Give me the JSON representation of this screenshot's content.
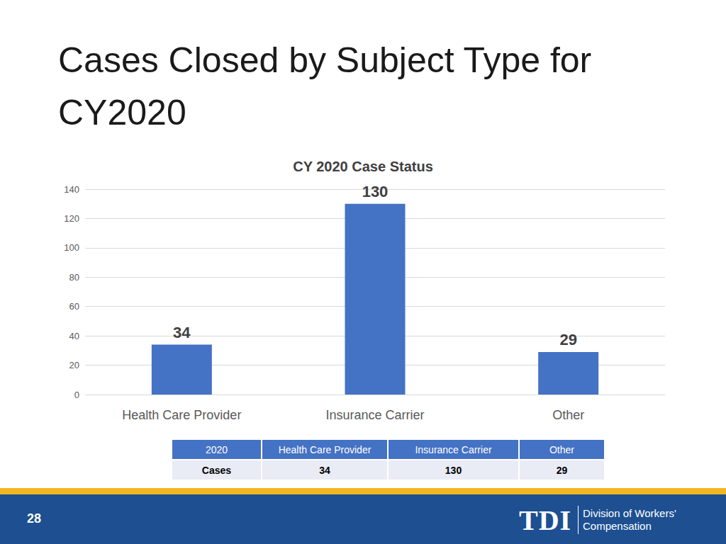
{
  "slide": {
    "title": "Cases Closed by Subject Type for CY2020",
    "page_number": 28,
    "logo": "TDI",
    "organization": [
      "Division of Workers'",
      "Compensation"
    ]
  },
  "chart_data": {
    "type": "bar",
    "title": "CY 2020 Case Status",
    "categories": [
      "Health Care Provider",
      "Insurance Carrier",
      "Other"
    ],
    "values": [
      34,
      130,
      29
    ],
    "color": "#4472c4",
    "ylim": [
      0,
      140
    ],
    "yticks": [
      0,
      20,
      40,
      60,
      80,
      100,
      120,
      140
    ],
    "grid": true,
    "data_labels": true
  },
  "table": {
    "header": [
      "2020",
      "Health Care Provider",
      "Insurance Carrier",
      "Other"
    ],
    "rows": [
      [
        "Cases",
        34,
        130,
        29
      ]
    ]
  }
}
